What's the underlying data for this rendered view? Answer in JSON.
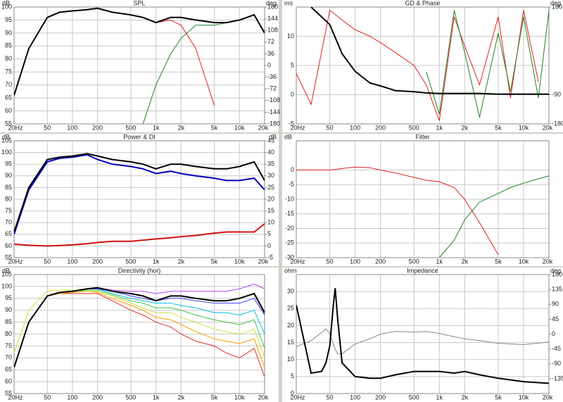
{
  "chart_data": [
    {
      "type": "line",
      "title": "SPL",
      "y_label": "dB",
      "y2_label": "deg",
      "log_x": true,
      "grid": true,
      "xlim": [
        20,
        20000
      ],
      "xticks": [
        {
          "value": 20,
          "label": "20Hz"
        },
        50,
        100,
        200,
        500,
        {
          "value": 1000,
          "label": "1k"
        },
        {
          "value": 2000,
          "label": "2k"
        },
        {
          "value": 5000,
          "label": "5k"
        },
        {
          "value": 10000,
          "label": "10k"
        },
        {
          "value": 20000,
          "label": "20k"
        }
      ],
      "ylim": [
        55,
        100
      ],
      "yticks": [
        55,
        60,
        65,
        70,
        75,
        80,
        85,
        90,
        95,
        100
      ],
      "y2lim": [
        -180,
        180
      ],
      "y2ticks": [
        -180,
        -144,
        -108,
        -72,
        -36,
        0,
        36,
        72,
        108,
        144,
        180
      ],
      "x": [
        20,
        30,
        50,
        70,
        100,
        150,
        200,
        300,
        500,
        700,
        1000,
        1500,
        2000,
        3000,
        5000,
        7000,
        10000,
        15000,
        20000
      ],
      "series": [
        {
          "color": "#e02020",
          "values": [
            66,
            84,
            96,
            98,
            98.5,
            99,
            99.5,
            98,
            97,
            96,
            94,
            95,
            93,
            84,
            62,
            null,
            null,
            null,
            null
          ]
        },
        {
          "color": "#208020",
          "values": [
            null,
            null,
            null,
            null,
            null,
            null,
            null,
            null,
            null,
            55,
            70,
            82,
            88,
            93,
            93,
            94,
            95,
            97,
            90
          ]
        },
        {
          "color": "#000000",
          "bold": true,
          "values": [
            66,
            84,
            96,
            98,
            98.5,
            99,
            99.5,
            98,
            97,
            96,
            94,
            96,
            96,
            95,
            94,
            94,
            95,
            97,
            90
          ]
        }
      ]
    },
    {
      "type": "line",
      "title": "GD & Phase",
      "y_label": "ms",
      "y2_label": "deg",
      "log_x": true,
      "grid": true,
      "xlim": [
        20,
        20000
      ],
      "xticks": [
        {
          "value": 20,
          "label": "20Hz"
        },
        50,
        100,
        200,
        500,
        {
          "value": 1000,
          "label": "1k"
        },
        {
          "value": 2000,
          "label": "2k"
        },
        {
          "value": 5000,
          "label": "5k"
        },
        {
          "value": 10000,
          "label": "10k"
        },
        {
          "value": 20000,
          "label": "20k"
        }
      ],
      "ylim": [
        -5,
        15
      ],
      "yticks": [
        -5,
        0,
        5,
        10
      ],
      "y2lim": [
        -180,
        180
      ],
      "y2ticks": [
        -180,
        -90,
        180
      ],
      "x": [
        20,
        30,
        50,
        70,
        100,
        150,
        200,
        300,
        500,
        700,
        1000,
        1500,
        2000,
        3000,
        5000,
        7000,
        10000,
        15000,
        20000
      ],
      "series": [
        {
          "color": "#e02020",
          "axis": "y2",
          "values": [
            -25,
            -120,
            170,
            140,
            110,
            90,
            70,
            40,
            0,
            -60,
            -170,
            150,
            60,
            -60,
            150,
            -100,
            170,
            -50,
            null
          ]
        },
        {
          "color": "#208020",
          "axis": "y2",
          "values": [
            null,
            null,
            null,
            null,
            null,
            null,
            null,
            null,
            null,
            -20,
            -150,
            170,
            40,
            -160,
            100,
            -80,
            150,
            -100,
            170
          ]
        },
        {
          "color": "#000000",
          "bold": true,
          "values": [
            null,
            15,
            12,
            7,
            4,
            2,
            1.5,
            0.7,
            0.5,
            0.3,
            0.2,
            0.2,
            0.2,
            0.2,
            0.1,
            0.1,
            0.1,
            0.1,
            0.1
          ]
        }
      ]
    },
    {
      "type": "line",
      "title": "Power & DI",
      "y_label": "dB",
      "y2_label": "dB",
      "log_x": true,
      "grid": true,
      "xlim": [
        20,
        20000
      ],
      "xticks": [
        {
          "value": 20,
          "label": "20Hz"
        },
        50,
        100,
        200,
        500,
        {
          "value": 1000,
          "label": "1k"
        },
        {
          "value": 2000,
          "label": "2k"
        },
        {
          "value": 5000,
          "label": "5k"
        },
        {
          "value": 10000,
          "label": "10k"
        },
        {
          "value": 20000,
          "label": "20k"
        }
      ],
      "ylim": [
        55,
        105
      ],
      "yticks": [
        55,
        60,
        65,
        70,
        75,
        80,
        85,
        90,
        95,
        100,
        105
      ],
      "y2lim": [
        -5,
        45
      ],
      "y2ticks": [
        -5,
        0,
        5,
        10,
        15,
        20,
        25,
        30,
        35,
        40,
        45
      ],
      "x": [
        20,
        30,
        50,
        70,
        100,
        150,
        200,
        300,
        500,
        700,
        1000,
        1500,
        2000,
        3000,
        5000,
        7000,
        10000,
        15000,
        20000
      ],
      "series": [
        {
          "color": "#0000c0",
          "bold": true,
          "values": [
            65,
            84,
            96,
            97.5,
            98,
            99,
            97,
            95,
            94,
            93,
            91,
            92,
            91,
            90,
            89,
            88,
            88,
            89,
            84
          ]
        },
        {
          "color": "#000000",
          "bold": true,
          "values": [
            66,
            85,
            97,
            98,
            98.5,
            99.5,
            98.5,
            97,
            96,
            95,
            93,
            95,
            95,
            94,
            93,
            93,
            94,
            96,
            88
          ]
        },
        {
          "color": "#d01010",
          "bold": true,
          "axis": "y2",
          "values": [
            0.8,
            0.3,
            0,
            0.2,
            0.5,
            1,
            1.5,
            2,
            2,
            2.5,
            3,
            3.5,
            4,
            4.5,
            5.5,
            6,
            6,
            6,
            9.5
          ]
        }
      ]
    },
    {
      "type": "line",
      "title": "Filter",
      "y_label": "dB",
      "log_x": true,
      "grid": true,
      "xlim": [
        20,
        20000
      ],
      "xticks": [
        {
          "value": 20,
          "label": "20Hz"
        },
        50,
        100,
        200,
        500,
        {
          "value": 1000,
          "label": "1k"
        },
        {
          "value": 2000,
          "label": "2k"
        },
        {
          "value": 5000,
          "label": "5k"
        },
        {
          "value": 10000,
          "label": "10k"
        },
        {
          "value": 20000,
          "label": "20k"
        }
      ],
      "ylim": [
        -30,
        10
      ],
      "yticks": [
        -30,
        -25,
        -20,
        -15,
        -10,
        -5,
        0
      ],
      "x": [
        20,
        30,
        50,
        70,
        100,
        150,
        200,
        300,
        500,
        700,
        1000,
        1500,
        2000,
        3000,
        5000,
        7000,
        10000,
        15000,
        20000
      ],
      "series": [
        {
          "color": "#e02020",
          "values": [
            0,
            0,
            0,
            0.5,
            1,
            0.8,
            0,
            -1,
            -2.5,
            -3.5,
            -4,
            -6,
            -10,
            -18,
            -29,
            null,
            null,
            null,
            null
          ]
        },
        {
          "color": "#208020",
          "values": [
            null,
            null,
            null,
            null,
            null,
            null,
            null,
            null,
            null,
            null,
            -30,
            -24,
            -17,
            -11,
            -8,
            -6,
            -4.5,
            -3,
            -2
          ]
        }
      ]
    },
    {
      "type": "line",
      "title": "Directivity (hor)",
      "y_label": "dB",
      "log_x": true,
      "grid": true,
      "xlim": [
        20,
        20000
      ],
      "xticks": [
        {
          "value": 20,
          "label": "20Hz"
        },
        50,
        100,
        200,
        500,
        {
          "value": 1000,
          "label": "1k"
        },
        {
          "value": 2000,
          "label": "2k"
        },
        {
          "value": 5000,
          "label": "5k"
        },
        {
          "value": 10000,
          "label": "10k"
        },
        {
          "value": 20000,
          "label": "20k"
        }
      ],
      "ylim": [
        55,
        105
      ],
      "yticks": [
        55,
        60,
        65,
        70,
        75,
        80,
        85,
        90,
        95,
        100,
        105
      ],
      "x": [
        20,
        30,
        50,
        70,
        100,
        150,
        200,
        300,
        500,
        700,
        1000,
        1500,
        2000,
        3000,
        5000,
        7000,
        10000,
        15000,
        20000
      ],
      "series": [
        {
          "color": "#e03030",
          "values": [
            66,
            85,
            96,
            97,
            97,
            97,
            97,
            94,
            90,
            88,
            85,
            83,
            80,
            77,
            75,
            72,
            70,
            74,
            62
          ]
        },
        {
          "color": "#ff9900",
          "values": [
            66,
            85,
            96,
            97,
            97.5,
            98,
            97.5,
            95,
            92,
            90,
            87,
            86,
            84,
            81,
            78,
            77,
            76,
            78,
            66
          ]
        },
        {
          "color": "#c8e040",
          "values": [
            72,
            90,
            98,
            98.5,
            98.5,
            98,
            98,
            96,
            93,
            91,
            89,
            89,
            87,
            85,
            82,
            81,
            80,
            82,
            70
          ]
        },
        {
          "color": "#40c040",
          "values": [
            66,
            85,
            96,
            97.5,
            98,
            98.5,
            98.5,
            96.5,
            94,
            93,
            91,
            91,
            90,
            88,
            86,
            85,
            84,
            86,
            74
          ]
        },
        {
          "color": "#00c0e0",
          "values": [
            66,
            85,
            96,
            97.5,
            98,
            99,
            99,
            97,
            95,
            94,
            93,
            93,
            92,
            91,
            89,
            89,
            88,
            90,
            80
          ]
        },
        {
          "color": "#4040ff",
          "values": [
            66,
            85,
            96,
            97.5,
            98,
            99,
            99,
            98,
            96,
            95,
            94,
            95,
            95,
            94,
            93,
            93,
            93,
            95,
            88
          ]
        },
        {
          "color": "#b040ff",
          "values": [
            66,
            85,
            96,
            97.5,
            98,
            99,
            99.5,
            98.5,
            98,
            98,
            97,
            98,
            98,
            98,
            98,
            98,
            99,
            101,
            99
          ]
        },
        {
          "color": "#000000",
          "bold": true,
          "values": [
            66,
            85,
            96,
            97.5,
            98,
            99,
            99.5,
            98,
            97,
            96,
            94,
            96,
            96,
            95,
            94,
            94,
            95,
            97,
            89
          ]
        }
      ]
    },
    {
      "type": "line",
      "title": "Impedance",
      "y_label": "ohm",
      "y2_label": "deg",
      "log_x": true,
      "grid": true,
      "xlim": [
        20,
        20000
      ],
      "xticks": [
        {
          "value": 20,
          "label": "20Hz"
        },
        50,
        100,
        200,
        500,
        {
          "value": 1000,
          "label": "1k"
        },
        {
          "value": 2000,
          "label": "2k"
        },
        {
          "value": 5000,
          "label": "5k"
        },
        {
          "value": 10000,
          "label": "10k"
        },
        {
          "value": 20000,
          "label": "20k"
        }
      ],
      "ylim": [
        0,
        35
      ],
      "yticks": [
        0,
        5,
        10,
        15,
        20,
        25,
        30
      ],
      "y2lim": [
        -180,
        180
      ],
      "y2ticks": [
        -135,
        -90,
        -45,
        0,
        45,
        90,
        135,
        180
      ],
      "x": [
        20,
        30,
        40,
        45,
        50,
        55,
        58,
        62,
        70,
        100,
        150,
        200,
        300,
        500,
        700,
        1000,
        1500,
        2000,
        3000,
        5000,
        10000,
        20000
      ],
      "series": [
        {
          "color": "#888888",
          "axis": "y2",
          "values": [
            -38,
            -20,
            5,
            16,
            0,
            -30,
            -45,
            -60,
            -60,
            -30,
            -14,
            0,
            8,
            6,
            8,
            2,
            -8,
            -14,
            -20,
            -28,
            -32,
            -24
          ]
        },
        {
          "color": "#000000",
          "bold": true,
          "values": [
            26,
            6,
            6.5,
            9,
            14,
            26,
            31,
            22,
            9,
            5,
            4.5,
            4.5,
            5.5,
            6.5,
            6.5,
            6.5,
            6,
            6.5,
            5.5,
            4.5,
            3.5,
            3
          ]
        }
      ]
    }
  ]
}
